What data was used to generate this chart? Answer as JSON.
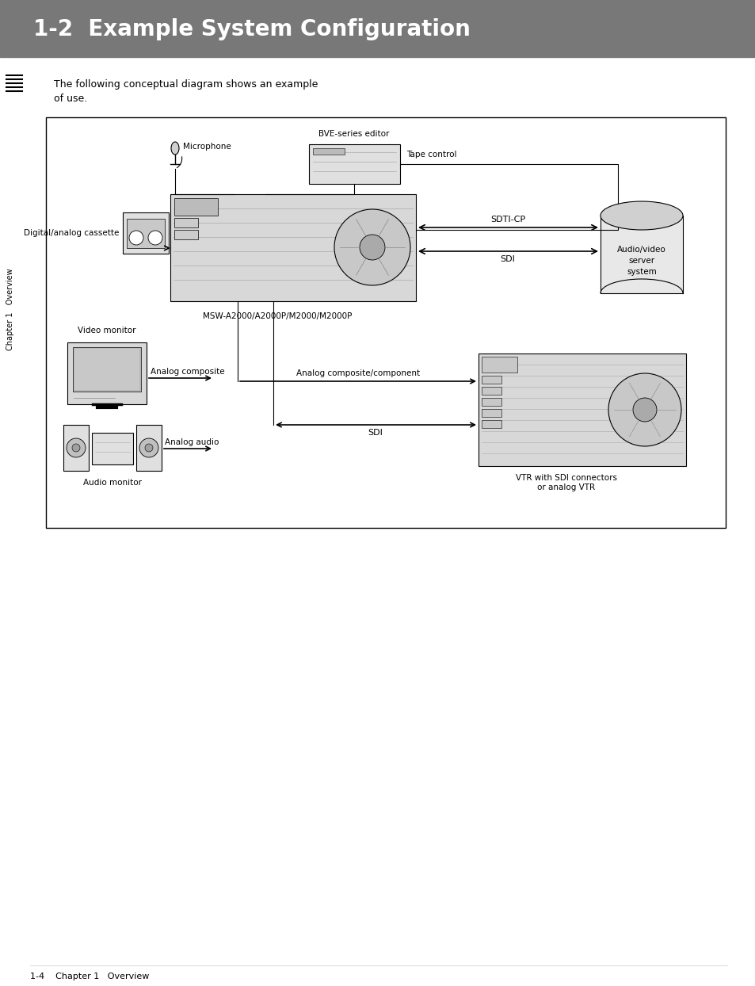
{
  "title": "1-2  Example System Configuration",
  "title_bg": "#787878",
  "title_color": "#ffffff",
  "title_fontsize": 20,
  "body_bg": "#ffffff",
  "intro_line1": "The following conceptual diagram shows an example",
  "intro_line2": "of use.",
  "footer_text": "1-4    Chapter 1   Overview",
  "sidebar_text": "Chapter 1   Overview",
  "diagram_border": "#000000",
  "label_microphone": "Microphone",
  "label_bve_editor": "BVE-series editor",
  "label_tape_control": "Tape control",
  "label_digital_cassette": "Digital/analog cassette",
  "label_sdti_cp": "SDTI-CP",
  "label_sdi_upper": "SDI",
  "label_audio_video": "Audio/video\nserver\nsystem",
  "label_msw": "MSW-A2000/A2000P/M2000/M2000P",
  "label_video_monitor": "Video monitor",
  "label_analog_composite": "Analog composite",
  "label_audio_monitor": "Audio monitor",
  "label_analog_audio": "Analog audio",
  "label_analog_comp_component": "Analog composite/component",
  "label_sdi_lower": "SDI",
  "label_vtr": "VTR with SDI connectors\nor analog VTR"
}
